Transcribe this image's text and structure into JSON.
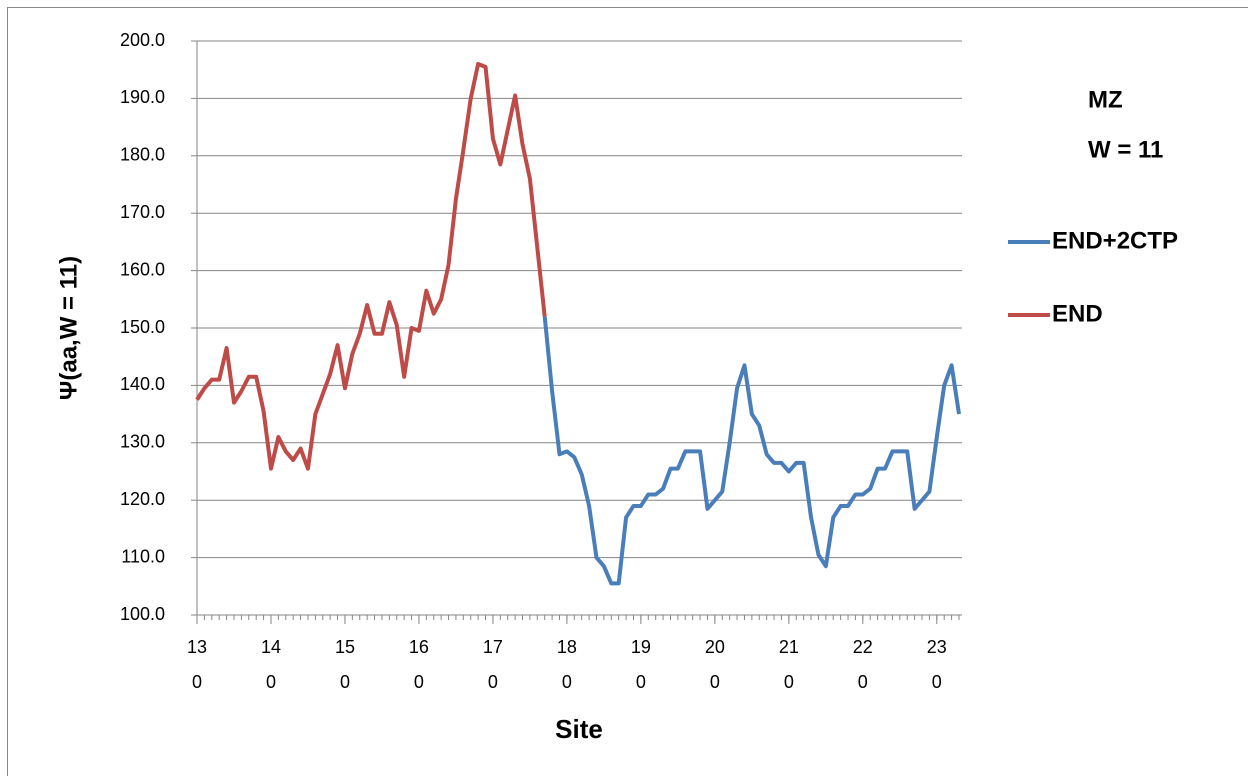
{
  "chart_data": {
    "type": "line",
    "x_label": "Site",
    "y_label": "Ψ(aa,W = 11)",
    "annotations": [
      "MZ",
      "W = 11"
    ],
    "x": [
      130,
      131,
      132,
      133,
      134,
      135,
      136,
      137,
      138,
      139,
      140,
      141,
      142,
      143,
      144,
      145,
      146,
      147,
      148,
      149,
      150,
      151,
      152,
      153,
      154,
      155,
      156,
      157,
      158,
      159,
      160,
      161,
      162,
      163,
      164,
      165,
      166,
      167,
      168,
      169,
      170,
      171,
      172,
      173,
      174,
      175,
      176,
      177,
      178,
      179,
      180,
      181,
      182,
      183,
      184,
      185,
      186,
      187,
      188,
      189,
      190,
      191,
      192,
      193,
      194,
      195,
      196,
      197,
      198,
      199,
      200,
      201,
      202,
      203,
      204,
      205,
      206,
      207,
      208,
      209,
      210,
      211,
      212,
      213,
      214,
      215,
      216,
      217,
      218,
      219,
      220,
      221,
      222,
      223,
      224,
      225,
      226,
      227,
      228,
      229,
      230,
      231,
      232,
      233
    ],
    "series": [
      {
        "name": "END+2CTP",
        "color": "#4a7ebb",
        "values": [
          null,
          null,
          null,
          null,
          null,
          null,
          null,
          null,
          null,
          null,
          null,
          null,
          null,
          null,
          null,
          null,
          null,
          null,
          null,
          null,
          null,
          null,
          null,
          null,
          null,
          null,
          null,
          null,
          null,
          null,
          null,
          null,
          null,
          null,
          null,
          null,
          null,
          null,
          null,
          null,
          null,
          null,
          null,
          null,
          null,
          null,
          null,
          152,
          139,
          128,
          128.5,
          127.5,
          124.5,
          119,
          110,
          108.5,
          105.5,
          105.5,
          117,
          119,
          119,
          121,
          121,
          122,
          125.5,
          125.5,
          128.5,
          128.5,
          128.5,
          118.5,
          120,
          121.5,
          130,
          139.5,
          143.5,
          135,
          133,
          128,
          126.5,
          126.5,
          125,
          126.5,
          126.5,
          117,
          110.5,
          108.5,
          117,
          119,
          119,
          121,
          121,
          122,
          125.5,
          125.5,
          128.5,
          128.5,
          128.5,
          118.5,
          120,
          121.5,
          131,
          140,
          143.5,
          135
        ]
      },
      {
        "name": "END",
        "color": "#be4b48",
        "values": [
          137.5,
          139.5,
          141,
          141,
          146.5,
          137,
          139,
          141.5,
          141.5,
          135.5,
          125.5,
          131,
          128.5,
          127,
          129,
          125.5,
          135,
          138.5,
          142,
          147,
          139.5,
          145.5,
          149,
          154,
          149,
          149,
          154.5,
          150.5,
          141.5,
          150,
          149.5,
          156.5,
          152.5,
          155,
          161,
          172.5,
          181,
          190,
          196,
          195.5,
          183,
          178.5,
          184.5,
          190.5,
          182,
          176,
          164,
          152,
          null,
          null,
          null,
          null,
          null,
          null,
          null,
          null,
          null,
          null,
          null,
          null,
          null,
          null,
          null,
          null,
          null,
          null,
          null,
          null,
          null,
          null,
          null,
          null,
          null,
          null,
          null,
          null,
          null,
          null,
          null,
          null,
          null,
          null,
          null,
          null,
          null,
          null,
          null,
          null,
          null,
          null,
          null,
          null,
          null,
          null,
          null,
          null,
          null,
          null,
          null,
          null,
          null,
          null,
          null,
          null
        ]
      }
    ],
    "xlim": [
      130,
      233
    ],
    "xticks": [
      130,
      140,
      150,
      160,
      170,
      180,
      190,
      200,
      210,
      220,
      230
    ],
    "ylim": [
      100,
      200
    ],
    "yticks": [
      {
        "value": 100,
        "label": "100.0"
      },
      {
        "value": 110,
        "label": "110.0"
      },
      {
        "value": 120,
        "label": "120.0"
      },
      {
        "value": 130,
        "label": "130.0"
      },
      {
        "value": 140,
        "label": "140.0"
      },
      {
        "value": 150,
        "label": "150.0"
      },
      {
        "value": 160,
        "label": "160.0"
      },
      {
        "value": 170,
        "label": "170.0"
      },
      {
        "value": 180,
        "label": "180.0"
      },
      {
        "value": 190,
        "label": "190.0"
      },
      {
        "value": 200,
        "label": "200.0"
      }
    ],
    "grid": true,
    "legend": "right"
  }
}
